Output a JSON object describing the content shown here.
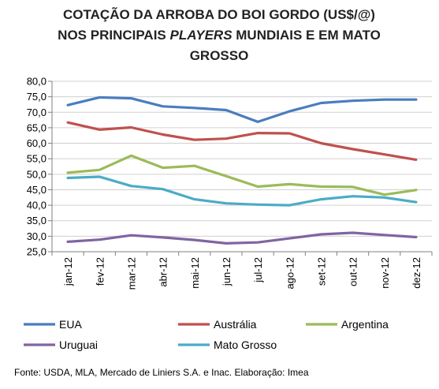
{
  "chart_data": {
    "type": "line",
    "title_lines": [
      {
        "parts": [
          {
            "text": "COTAÇÃO DA ARROBA DO BOI GORDO (US$/@)",
            "italic": false
          }
        ]
      },
      {
        "parts": [
          {
            "text": "NOS PRINCIPAIS ",
            "italic": false
          },
          {
            "text": "PLAYERS",
            "italic": true
          },
          {
            "text": " MUNDIAIS E EM MATO",
            "italic": false
          }
        ]
      },
      {
        "parts": [
          {
            "text": "GROSSO",
            "italic": false
          }
        ]
      }
    ],
    "categories": [
      "jan-12",
      "fev-12",
      "mar-12",
      "abr-12",
      "mai-12",
      "jun-12",
      "jul-12",
      "ago-12",
      "set-12",
      "out-12",
      "nov-12",
      "dez-12"
    ],
    "ylim": [
      25,
      80
    ],
    "yticks": [
      "25,0",
      "30,0",
      "35,0",
      "40,0",
      "45,0",
      "50,0",
      "55,0",
      "60,0",
      "65,0",
      "70,0",
      "75,0",
      "80,0"
    ],
    "ytick_values": [
      25,
      30,
      35,
      40,
      45,
      50,
      55,
      60,
      65,
      70,
      75,
      80
    ],
    "grid": true,
    "legend_position": "bottom",
    "series": [
      {
        "name": "EUA",
        "color": "#4a7dbf",
        "values": [
          72.3,
          74.8,
          74.5,
          71.9,
          71.4,
          70.7,
          66.9,
          70.3,
          73.0,
          73.7,
          74.1,
          74.1
        ]
      },
      {
        "name": "Austrália",
        "color": "#c0504d",
        "values": [
          66.7,
          64.4,
          65.1,
          62.8,
          61.1,
          61.5,
          63.3,
          63.2,
          60.0,
          58.1,
          56.4,
          54.7
        ]
      },
      {
        "name": "Argentina",
        "color": "#9bbb59",
        "values": [
          50.5,
          51.4,
          56.0,
          52.1,
          52.7,
          49.4,
          46.0,
          46.8,
          46.0,
          45.9,
          43.4,
          44.9
        ]
      },
      {
        "name": "Uruguai",
        "color": "#8064a2",
        "values": [
          28.2,
          28.9,
          30.3,
          29.6,
          28.8,
          27.7,
          28.0,
          29.3,
          30.6,
          31.1,
          30.4,
          29.7
        ]
      },
      {
        "name": "Mato Grosso",
        "color": "#4bacc6",
        "values": [
          48.8,
          49.2,
          46.2,
          45.2,
          41.9,
          40.6,
          40.2,
          40.0,
          41.9,
          42.9,
          42.5,
          41.0
        ]
      }
    ]
  },
  "source": "Fonte: USDA, MLA, Mercado de Liniers S.A. e Inac. Elaboração: Imea"
}
